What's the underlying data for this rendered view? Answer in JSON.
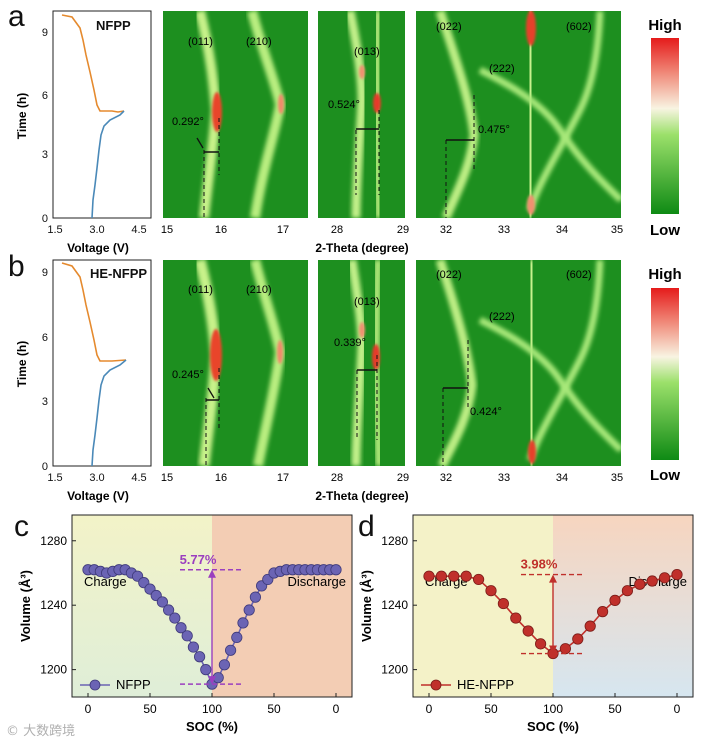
{
  "figure": {
    "panel_labels": [
      "a",
      "b",
      "c",
      "d"
    ],
    "colors": {
      "charge_curve": "#4a89b8",
      "discharge_curve": "#e58a2e",
      "nfpp_marker": "#6b64b4",
      "henfpp_marker": "#c0302b",
      "annot_nfpp": "#9b3fbf",
      "annot_henfpp": "#c0302b",
      "map_low": "#1a8a1a",
      "map_high": "#e8302a"
    },
    "watermark": "© 大数跨境"
  },
  "xrd_rows": [
    {
      "id": "a",
      "sample_label": "NFPP",
      "voltage_charge_end": 5.2,
      "voltage_discharge_end": 9.6,
      "peak_labels": [
        "(011)",
        "(210)",
        "(013)",
        "(022)",
        "(222)",
        "(602)"
      ],
      "shift_labels": [
        "0.292°",
        "0.524°",
        "0.475°"
      ]
    },
    {
      "id": "b",
      "sample_label": "HE-NFPP",
      "voltage_charge_end": 4.9,
      "voltage_discharge_end": 9.6,
      "peak_labels": [
        "(011)",
        "(210)",
        "(013)",
        "(022)",
        "(222)",
        "(602)"
      ],
      "shift_labels": [
        "0.245°",
        "0.339°",
        "0.424°"
      ]
    }
  ],
  "xrd_axes": {
    "time_label": "Time (h)",
    "time_ticks": [
      "0",
      "3",
      "6",
      "9"
    ],
    "voltage_label": "Voltage (V)",
    "voltage_ticks": [
      "1.5",
      "3.0",
      "4.5"
    ],
    "two_theta_label": "2-Theta (degree)",
    "panel1_ticks": [
      "15",
      "16",
      "17"
    ],
    "panel2_ticks": [
      "28",
      "29"
    ],
    "panel3_ticks": [
      "32",
      "33",
      "34",
      "35"
    ],
    "colorbar_high": "High",
    "colorbar_low": "Low"
  },
  "chart_data": [
    {
      "type": "line",
      "panel": "c",
      "title": "",
      "xlabel": "SOC (%)",
      "ylabel": "Volume (Å³)",
      "x_tick_labels": [
        "0",
        "50",
        "100",
        "50",
        "0"
      ],
      "y_ticks": [
        "1200",
        "1240",
        "1280"
      ],
      "ylim": [
        1183,
        1296
      ],
      "regions": [
        "Charge",
        "Discharge"
      ],
      "legend": "NFPP",
      "annotation": "5.77%",
      "series": [
        {
          "name": "NFPP",
          "x": [
            0,
            5,
            10,
            15,
            20,
            25,
            30,
            35,
            40,
            45,
            50,
            55,
            60,
            65,
            70,
            75,
            80,
            85,
            90,
            95,
            100,
            105,
            110,
            115,
            120,
            125,
            130,
            135,
            140,
            145,
            150,
            155,
            160,
            165,
            170,
            175,
            180,
            185,
            190,
            195,
            200
          ],
          "values": [
            1262,
            1262,
            1261,
            1260,
            1261,
            1262,
            1262,
            1260,
            1258,
            1254,
            1250,
            1246,
            1242,
            1237,
            1232,
            1226,
            1221,
            1214,
            1208,
            1200,
            1191,
            1195,
            1203,
            1212,
            1220,
            1229,
            1237,
            1245,
            1252,
            1256,
            1260,
            1261,
            1262,
            1262,
            1262,
            1262,
            1262,
            1262,
            1262,
            1262,
            1262
          ]
        }
      ]
    },
    {
      "type": "line",
      "panel": "d",
      "title": "",
      "xlabel": "SOC (%)",
      "ylabel": "Volume (Å³)",
      "x_tick_labels": [
        "0",
        "50",
        "100",
        "50",
        "0"
      ],
      "y_ticks": [
        "1200",
        "1240",
        "1280"
      ],
      "ylim": [
        1183,
        1296
      ],
      "regions": [
        "Charge",
        "Discharge"
      ],
      "legend": "HE-NFPP",
      "annotation": "3.98%",
      "series": [
        {
          "name": "HE-NFPP",
          "x": [
            0,
            10,
            20,
            30,
            40,
            50,
            60,
            70,
            80,
            90,
            100,
            110,
            120,
            130,
            140,
            150,
            160,
            170,
            180,
            190,
            200
          ],
          "values": [
            1258,
            1258,
            1258,
            1258,
            1256,
            1249,
            1241,
            1232,
            1224,
            1216,
            1210,
            1213,
            1219,
            1227,
            1236,
            1243,
            1249,
            1253,
            1255,
            1257,
            1259
          ]
        }
      ]
    }
  ]
}
